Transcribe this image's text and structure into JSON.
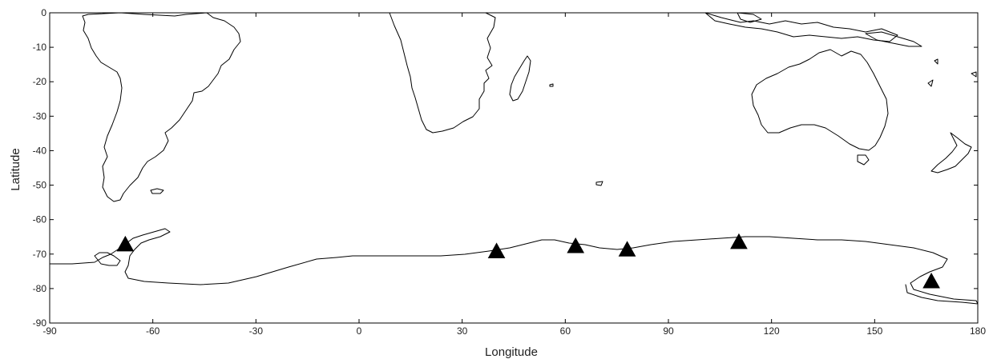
{
  "chart_data": {
    "type": "scatter",
    "title": "",
    "xlabel": "Longitude",
    "ylabel": "Latitude",
    "xlim": [
      -90,
      180
    ],
    "ylim": [
      -90,
      0
    ],
    "x_ticks": [
      "-90",
      "-60",
      "-30",
      "0",
      "30",
      "60",
      "90",
      "120",
      "150",
      "180"
    ],
    "y_ticks": [
      "0",
      "-10",
      "-20",
      "-30",
      "-40",
      "-50",
      "-60",
      "-70",
      "-80",
      "-90"
    ],
    "grid": false,
    "background": "coastline map (South America, Africa, Australia, New Zealand, Antarctica)",
    "series": [
      {
        "marker": "triangle",
        "color": "#000000",
        "points": [
          {
            "lon": -68,
            "lat": -67
          },
          {
            "lon": 40,
            "lat": -69
          },
          {
            "lon": 63,
            "lat": -67.5
          },
          {
            "lon": 78,
            "lat": -68.5
          },
          {
            "lon": 110.5,
            "lat": -66.3
          },
          {
            "lon": 166.5,
            "lat": -77.7
          }
        ]
      }
    ]
  }
}
